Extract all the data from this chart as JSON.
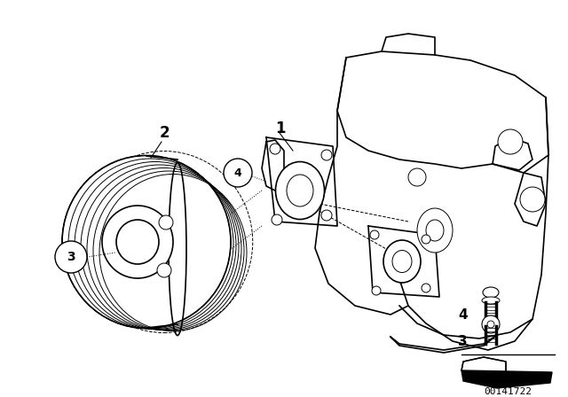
{
  "bg_color": "#ffffff",
  "line_color": "#000000",
  "diagram_id": "00141722",
  "fig_w": 6.4,
  "fig_h": 4.48,
  "dpi": 100
}
